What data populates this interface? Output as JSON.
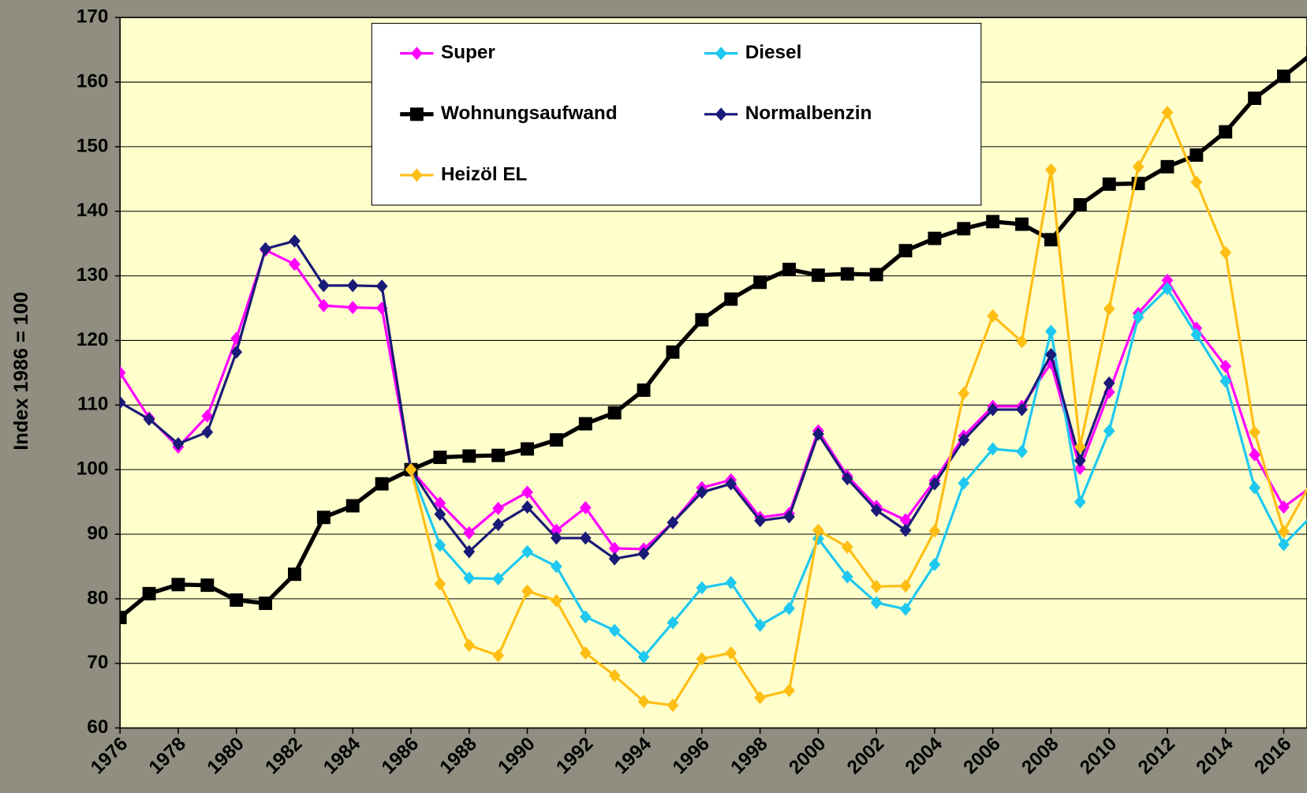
{
  "chart_data": {
    "type": "line",
    "y_label": "Index 1986 = 100",
    "x": [
      1976,
      1977,
      1978,
      1979,
      1980,
      1981,
      1982,
      1983,
      1984,
      1985,
      1986,
      1987,
      1988,
      1989,
      1990,
      1991,
      1992,
      1993,
      1994,
      1995,
      1996,
      1997,
      1998,
      1999,
      2000,
      2001,
      2002,
      2003,
      2004,
      2005,
      2006,
      2007,
      2008,
      2009,
      2010,
      2011,
      2012,
      2013,
      2014,
      2015,
      2016,
      2017
    ],
    "xlim": [
      1976,
      2016.8
    ],
    "xticks": [
      1976,
      1978,
      1980,
      1982,
      1984,
      1986,
      1988,
      1990,
      1992,
      1994,
      1996,
      1998,
      2000,
      2002,
      2004,
      2006,
      2008,
      2010,
      2012,
      2014,
      2016
    ],
    "ylim": [
      60,
      170
    ],
    "yticks": [
      60,
      70,
      80,
      90,
      100,
      110,
      120,
      130,
      140,
      150,
      160,
      170
    ],
    "grid": true,
    "legend": "top",
    "series": [
      {
        "name": "Super",
        "color": "#ff00ff",
        "marker": "diamond",
        "values": [
          115,
          108,
          103.5,
          108.3,
          120.3,
          134,
          131.8,
          125.4,
          125.1,
          125,
          100,
          94.8,
          90.2,
          94,
          96.5,
          90.6,
          94.1,
          87.8,
          87.7,
          91.8,
          97.2,
          98.4,
          92.6,
          93.2,
          106,
          99,
          94.3,
          92.2,
          98.3,
          105.2,
          109.8,
          109.8,
          116.5,
          100.2,
          112,
          124.2,
          129.3,
          121.9,
          116,
          102.3,
          94.2,
          97.5
        ]
      },
      {
        "name": "Diesel",
        "color": "#1ec8f0",
        "marker": "diamond",
        "values": [
          null,
          null,
          null,
          null,
          null,
          null,
          null,
          null,
          null,
          null,
          100,
          88.3,
          83.2,
          83.1,
          87.3,
          85,
          77.2,
          75.1,
          71,
          76.3,
          81.7,
          82.5,
          75.9,
          78.5,
          89.3,
          83.4,
          79.4,
          78.4,
          85.3,
          97.9,
          103.2,
          102.8,
          121.4,
          95,
          106,
          123.6,
          128,
          120.9,
          113.7,
          97.2,
          88.4,
          93
        ]
      },
      {
        "name": "Wohnungsaufwand",
        "color": "#000000",
        "marker": "square",
        "values": [
          77.1,
          80.8,
          82.2,
          82.1,
          79.8,
          79.3,
          83.8,
          92.6,
          94.4,
          97.8,
          100,
          101.9,
          102.1,
          102.2,
          103.2,
          104.6,
          107.1,
          108.8,
          112.3,
          118.2,
          123.2,
          126.4,
          129,
          131,
          130.1,
          130.3,
          130.2,
          133.9,
          135.8,
          137.3,
          138.4,
          138,
          135.6,
          141,
          144.2,
          144.3,
          146.9,
          148.7,
          152.3,
          157.5,
          160.9,
          164.5
        ]
      },
      {
        "name": "Normalbenzin",
        "color": "#1a1a78",
        "marker": "diamond",
        "values": [
          110.4,
          107.8,
          104,
          105.8,
          118.2,
          134.2,
          135.4,
          128.5,
          128.5,
          128.4,
          100,
          93.1,
          87.3,
          91.5,
          94.2,
          89.4,
          89.4,
          86.2,
          87,
          91.8,
          96.5,
          97.8,
          92.1,
          92.7,
          105.5,
          98.6,
          93.7,
          90.6,
          97.8,
          104.6,
          109.3,
          109.3,
          117.8,
          101.4,
          113.4,
          null,
          null,
          null,
          null,
          null,
          null,
          null
        ]
      },
      {
        "name": "Heizöl EL",
        "color": "#ffbe14",
        "marker": "diamond",
        "values": [
          null,
          null,
          null,
          null,
          null,
          null,
          null,
          null,
          null,
          null,
          100,
          82.3,
          72.8,
          71.2,
          81.2,
          79.7,
          71.6,
          68.1,
          64.1,
          63.5,
          70.7,
          71.6,
          64.7,
          65.8,
          90.6,
          88,
          81.9,
          82,
          90.5,
          111.8,
          123.8,
          119.8,
          146.4,
          103.5,
          124.9,
          146.9,
          155.3,
          144.5,
          133.6,
          105.8,
          90.4,
          98.5
        ]
      }
    ]
  }
}
